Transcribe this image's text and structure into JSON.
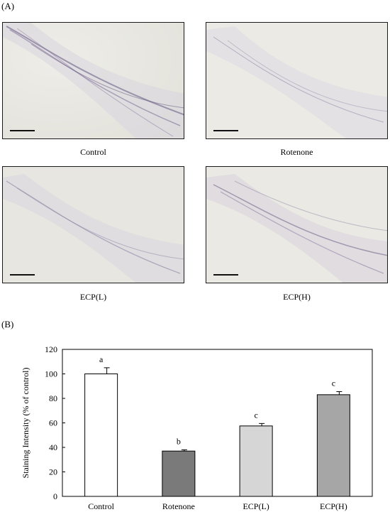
{
  "panel_a_label": "(A)",
  "panel_b_label": "(B)",
  "micrographs": [
    {
      "caption": "Control"
    },
    {
      "caption": "Rotenone"
    },
    {
      "caption": "ECP(L)"
    },
    {
      "caption": "ECP(H)"
    }
  ],
  "chart_data": {
    "type": "bar",
    "ylabel": "Staining Intensity (% of control)",
    "categories": [
      "Control",
      "Rotenone",
      "ECP(L)",
      "ECP(H)"
    ],
    "values": [
      100,
      37,
      57.5,
      83
    ],
    "errors": [
      5,
      1,
      2,
      2.5
    ],
    "significance_letters": [
      "a",
      "b",
      "c",
      "c"
    ],
    "bar_colors": [
      "#ffffff",
      "#7a7a7a",
      "#d6d6d6",
      "#a6a6a6"
    ],
    "ylim": [
      0,
      120
    ],
    "yticks": [
      0,
      20,
      40,
      60,
      80,
      100,
      120
    ]
  }
}
